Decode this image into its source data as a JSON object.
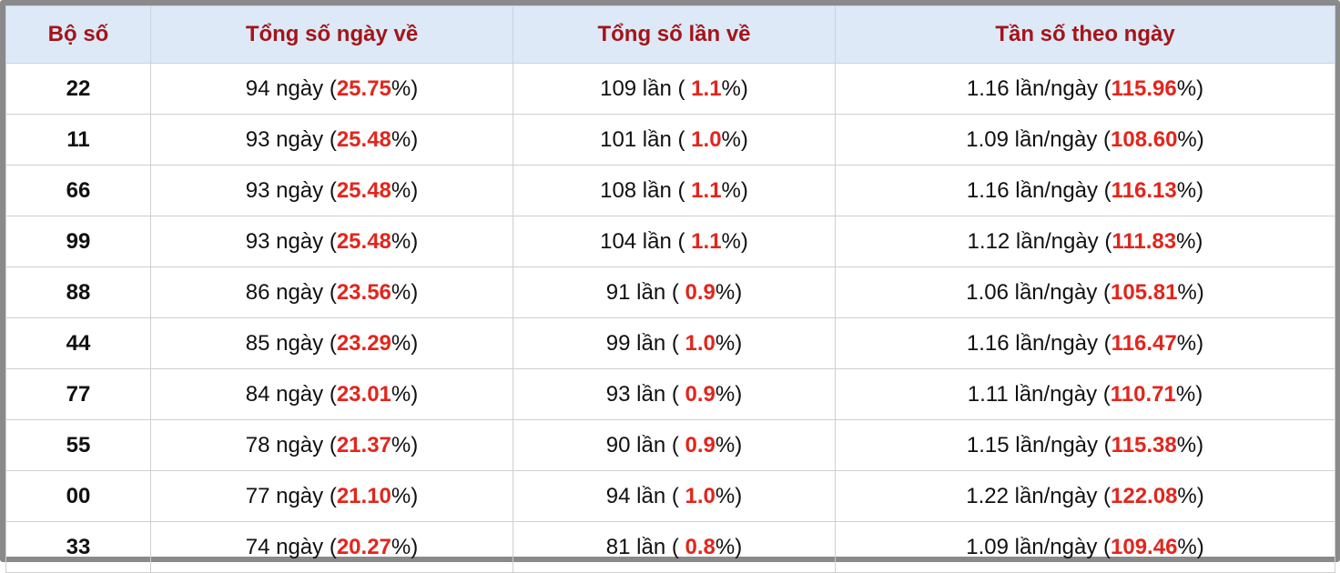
{
  "table": {
    "headers": [
      "Bộ số",
      "Tổng số ngày về",
      "Tổng số lần về",
      "Tần số theo ngày"
    ],
    "rows": [
      [
        "22",
        [
          "94 ngày (",
          "25.75",
          "%)"
        ],
        [
          "109 lần ( ",
          "1.1",
          "%)"
        ],
        [
          "1.16 lần/ngày (",
          "115.96",
          "%)"
        ]
      ],
      [
        "11",
        [
          "93 ngày (",
          "25.48",
          "%)"
        ],
        [
          "101 lần ( ",
          "1.0",
          "%)"
        ],
        [
          "1.09 lần/ngày (",
          "108.60",
          "%)"
        ]
      ],
      [
        "66",
        [
          "93 ngày (",
          "25.48",
          "%)"
        ],
        [
          "108 lần ( ",
          "1.1",
          "%)"
        ],
        [
          "1.16 lần/ngày (",
          "116.13",
          "%)"
        ]
      ],
      [
        "99",
        [
          "93 ngày (",
          "25.48",
          "%)"
        ],
        [
          "104 lần ( ",
          "1.1",
          "%)"
        ],
        [
          "1.12 lần/ngày (",
          "111.83",
          "%)"
        ]
      ],
      [
        "88",
        [
          "86 ngày (",
          "23.56",
          "%)"
        ],
        [
          "91 lần ( ",
          "0.9",
          "%)"
        ],
        [
          "1.06 lần/ngày (",
          "105.81",
          "%)"
        ]
      ],
      [
        "44",
        [
          "85 ngày (",
          "23.29",
          "%)"
        ],
        [
          "99 lần ( ",
          "1.0",
          "%)"
        ],
        [
          "1.16 lần/ngày (",
          "116.47",
          "%)"
        ]
      ],
      [
        "77",
        [
          "84 ngày (",
          "23.01",
          "%)"
        ],
        [
          "93 lần ( ",
          "0.9",
          "%)"
        ],
        [
          "1.11 lần/ngày (",
          "110.71",
          "%)"
        ]
      ],
      [
        "55",
        [
          "78 ngày (",
          "21.37",
          "%)"
        ],
        [
          "90 lần ( ",
          "0.9",
          "%)"
        ],
        [
          "1.15 lần/ngày (",
          "115.38",
          "%)"
        ]
      ],
      [
        "00",
        [
          "77 ngày (",
          "21.10",
          "%)"
        ],
        [
          "94 lần ( ",
          "1.0",
          "%)"
        ],
        [
          "1.22 lần/ngày (",
          "122.08",
          "%)"
        ]
      ],
      [
        "33",
        [
          "74 ngày (",
          "20.27",
          "%)"
        ],
        [
          "81 lần ( ",
          "0.8",
          "%)"
        ],
        [
          "1.09 lần/ngày (",
          "109.46",
          "%)"
        ]
      ]
    ]
  }
}
